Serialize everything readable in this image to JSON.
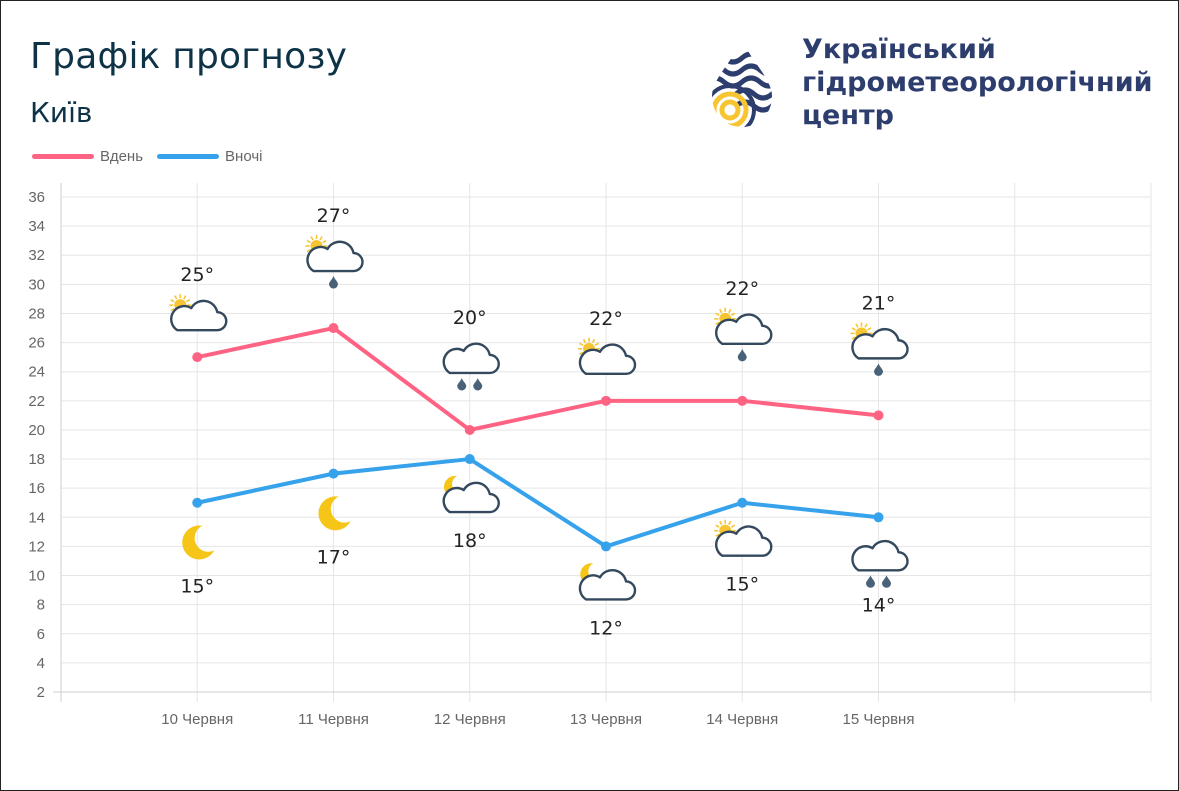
{
  "header": {
    "title": "Графік прогнозу",
    "city": "Київ"
  },
  "logo": {
    "icon": "ukrhydromet-logo-icon",
    "lines": [
      "Український",
      "гідрометеорологічний",
      "центр"
    ]
  },
  "colors": {
    "day": "#ff6384",
    "night": "#36a2eb",
    "cloud_stroke": "#34495e",
    "sun": "#f7c531",
    "moon": "#f5c518",
    "grid": "#e6e6e6"
  },
  "chart_data": {
    "type": "line",
    "categories": [
      "10 Червня",
      "11 Червня",
      "12 Червня",
      "13 Червня",
      "14 Червня",
      "15 Червня"
    ],
    "x_slots": 8,
    "ylim": [
      2,
      36
    ],
    "yticks": [
      2,
      4,
      6,
      8,
      10,
      12,
      14,
      16,
      18,
      20,
      22,
      24,
      26,
      28,
      30,
      32,
      34,
      36
    ],
    "grid": true,
    "legend_position": "top-left",
    "series": [
      {
        "key": "day",
        "name": "Вдень",
        "values": [
          25,
          27,
          20,
          22,
          22,
          21
        ],
        "labels": [
          "25°",
          "27°",
          "20°",
          "22°",
          "22°",
          "21°"
        ],
        "icons": [
          "partly-cloudy",
          "partly-cloudy-rain",
          "cloudy-rain-heavy",
          "partly-cloudy",
          "partly-cloudy-rain",
          "partly-cloudy-rain"
        ]
      },
      {
        "key": "night",
        "name": "Вночі",
        "values": [
          15,
          17,
          18,
          12,
          15,
          14
        ],
        "labels": [
          "15°",
          "17°",
          "18°",
          "12°",
          "15°",
          "14°"
        ],
        "icons": [
          "moon",
          "moon",
          "moon-cloudy",
          "moon-cloudy",
          "partly-cloudy",
          "cloudy-rain-heavy"
        ]
      }
    ]
  }
}
